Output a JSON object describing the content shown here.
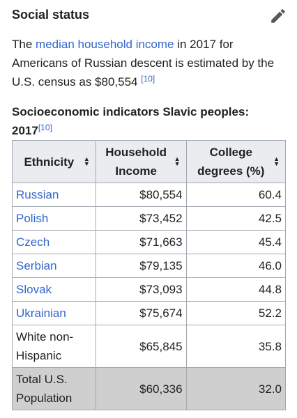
{
  "section": {
    "title": "Social status",
    "edit_icon": "pencil-icon"
  },
  "paragraph": {
    "before": "The ",
    "link": "median household income",
    "after": " in 2017 for Americans of Russian descent is estimated by the U.S. census as $80,554 ",
    "ref": "[10]"
  },
  "table": {
    "caption": "Socioeconomic indicators Slavic peoples: 2017",
    "caption_ref": "[10]",
    "headers": [
      "Ethnicity",
      "Household Income",
      "College degrees (%)"
    ],
    "sort_icon": "sort-icon",
    "rows": [
      {
        "ethnicity": "Russian",
        "income": "$80,554",
        "college": "60.4"
      },
      {
        "ethnicity": "Polish",
        "income": "$73,452",
        "college": "42.5"
      },
      {
        "ethnicity": "Czech",
        "income": "$71,663",
        "college": "45.4"
      },
      {
        "ethnicity": "Serbian",
        "income": "$79,135",
        "college": "46.0"
      },
      {
        "ethnicity": "Slovak",
        "income": "$73,093",
        "college": "44.8"
      },
      {
        "ethnicity": "Ukrainian",
        "income": "$75,674",
        "college": "52.2"
      },
      {
        "ethnicity": "White non-Hispanic",
        "income": "$65,845",
        "college": "35.8"
      },
      {
        "ethnicity": "Total U.S. Population",
        "income": "$60,336",
        "college": "32.0"
      }
    ]
  },
  "colors": {
    "link": "#3366cc",
    "header_bg": "#eaecf0",
    "total_row_bg": "#cfcfcf",
    "border": "#a2a9b1"
  }
}
